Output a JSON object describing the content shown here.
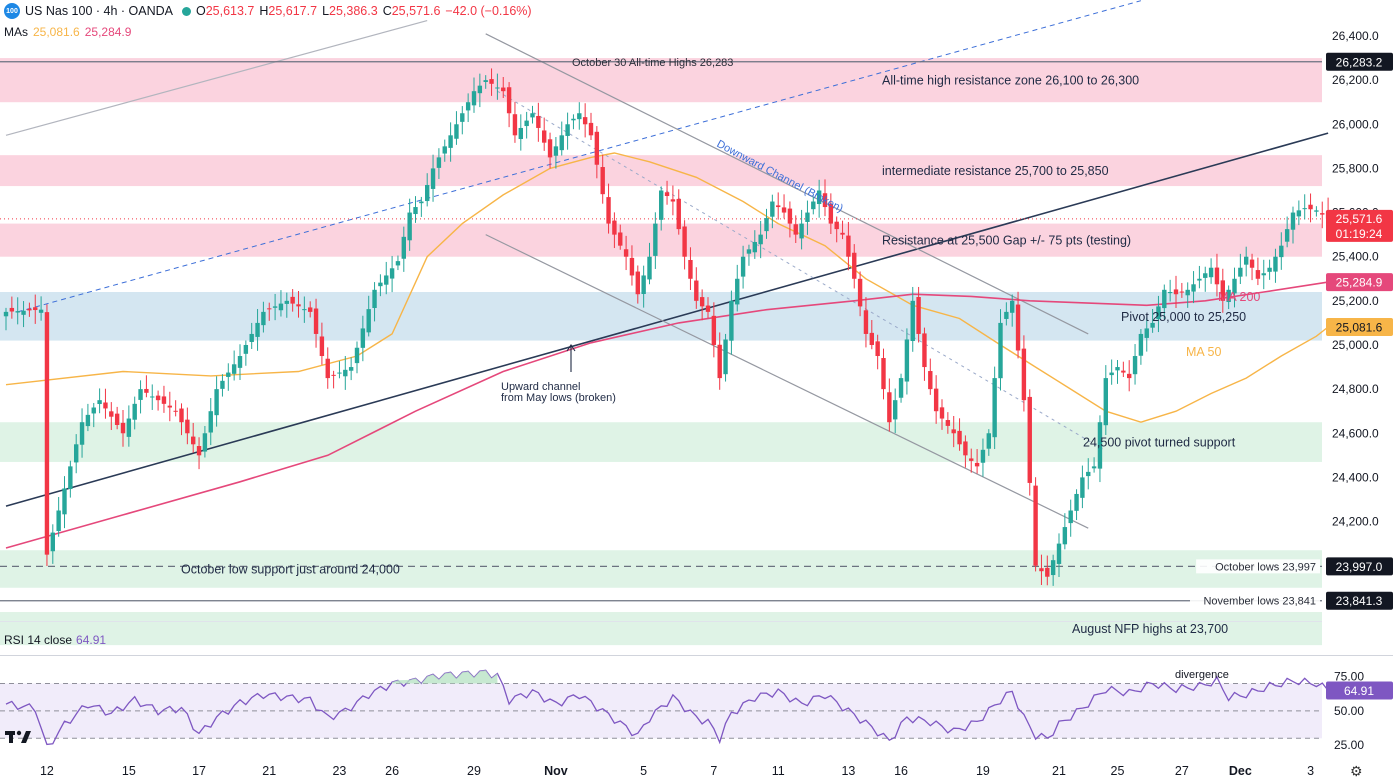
{
  "legend": {
    "badge": "100",
    "symbol": "US Nas 100 · 4h · OANDA",
    "o_label": "O",
    "o_value": "25,613.7",
    "h_label": "H",
    "h_value": "25,617.7",
    "l_label": "L",
    "l_value": "25,386.3",
    "c_label": "C",
    "c_value": "25,571.6",
    "change": "−42.0 (−0.16%)",
    "mas_label": "MAs",
    "ma50_value": "25,081.6",
    "ma200_value": "25,284.9"
  },
  "rsi_legend": {
    "label": "RSI 14 close",
    "value": "64.91"
  },
  "colors": {
    "up": "#26a69a",
    "down": "#f23645",
    "ma50": "#f7b548",
    "ma200": "#e5487b",
    "resistance_zone": "#fbd3df",
    "pivot_zone": "#d4e6f1",
    "support_zone": "#dff3e6",
    "rsi": "#7e57c2"
  },
  "chart_data": [
    {
      "type": "candlestick",
      "title": "US Nas 100 · 4h · OANDA",
      "y_range": [
        23500,
        26500
      ],
      "y_ticks": [
        {
          "value": 24000,
          "label": "24,000.0"
        },
        {
          "value": 24200,
          "label": "24,200.0"
        },
        {
          "value": 24400,
          "label": "24,400.0"
        },
        {
          "value": 24600,
          "label": "24,600.0"
        },
        {
          "value": 24800,
          "label": "24,800.0"
        },
        {
          "value": 25000,
          "label": "25,000.0"
        },
        {
          "value": 25200,
          "label": "25,200.0"
        },
        {
          "value": 25400,
          "label": "25,400.0"
        },
        {
          "value": 25600,
          "label": "25,600.0"
        },
        {
          "value": 25800,
          "label": "25,800.0"
        },
        {
          "value": 26000,
          "label": "26,000.0"
        },
        {
          "value": 26200,
          "label": "26,200.0"
        },
        {
          "value": 26400,
          "label": "26,400.0"
        }
      ],
      "x_ticks": [
        {
          "bar": 7,
          "label": "12"
        },
        {
          "bar": 21,
          "label": "15"
        },
        {
          "bar": 33,
          "label": "17"
        },
        {
          "bar": 45,
          "label": "21"
        },
        {
          "bar": 57,
          "label": "23"
        },
        {
          "bar": 66,
          "label": "26"
        },
        {
          "bar": 80,
          "label": "29"
        },
        {
          "bar": 94,
          "label": "Nov"
        },
        {
          "bar": 109,
          "label": "5"
        },
        {
          "bar": 121,
          "label": "7"
        },
        {
          "bar": 132,
          "label": "11"
        },
        {
          "bar": 144,
          "label": "13"
        },
        {
          "bar": 153,
          "label": "16"
        },
        {
          "bar": 167,
          "label": "19"
        },
        {
          "bar": 180,
          "label": "21"
        },
        {
          "bar": 190,
          "label": "25"
        },
        {
          "bar": 201,
          "label": "27"
        },
        {
          "bar": 211,
          "label": "Dec"
        },
        {
          "bar": 223,
          "label": "3"
        }
      ],
      "zones": [
        {
          "kind": "resistance",
          "from": 26100,
          "to": 26300,
          "label": "All-time high resistance zone 26,100 to 26,300"
        },
        {
          "kind": "resistance",
          "from": 25720,
          "to": 25860,
          "label": "intermediate resistance 25,700 to 25,850"
        },
        {
          "kind": "resistance",
          "from": 25400,
          "to": 25550,
          "label": "Resistance at 25,500 Gap +/- 75 pts (testing)"
        },
        {
          "kind": "pivot",
          "from": 25020,
          "to": 25240,
          "label": "Pivot 25,000 to 25,250"
        },
        {
          "kind": "support",
          "from": 24470,
          "to": 24650,
          "label": "24,500 pivot turned support"
        },
        {
          "kind": "support",
          "from": 23900,
          "to": 24070,
          "label": "October low support just around 24,000"
        },
        {
          "kind": "support",
          "from": 23640,
          "to": 23790,
          "label": "August NFP highs at 23,700"
        }
      ],
      "levels": [
        {
          "value": 26283.2,
          "label": "October 30 All-time Highs 26,283",
          "badge": "26,283.2"
        },
        {
          "value": 23997.0,
          "label": "October lows 23,997",
          "badge": "23,997.0"
        },
        {
          "value": 23841.3,
          "label": "November lows 23,841",
          "badge": "23,841.3"
        }
      ],
      "last_price": {
        "value": 25571.6,
        "badge": "25,571.6",
        "countdown": "01:19:24"
      },
      "ma_badges": [
        {
          "name": "MA 200",
          "value": 25284.9,
          "badge": "25,284.9"
        },
        {
          "name": "MA 50",
          "value": 25081.6,
          "badge": "25,081.6"
        }
      ],
      "annotations": [
        {
          "text": "Downward Channel (Broken)"
        },
        {
          "text": "Upward channel"
        },
        {
          "text": "from May lows (broken)"
        }
      ],
      "anchors": [
        [
          0,
          25150
        ],
        [
          6,
          25160
        ],
        [
          7,
          24050
        ],
        [
          13,
          24650
        ],
        [
          16,
          24750
        ],
        [
          20,
          24600
        ],
        [
          23,
          24800
        ],
        [
          26,
          24750
        ],
        [
          29,
          24700
        ],
        [
          33,
          24500
        ],
        [
          36,
          24800
        ],
        [
          40,
          24950
        ],
        [
          44,
          25150
        ],
        [
          48,
          25200
        ],
        [
          52,
          25150
        ],
        [
          55,
          24850
        ],
        [
          59,
          24900
        ],
        [
          63,
          25250
        ],
        [
          67,
          25380
        ],
        [
          69,
          25600
        ],
        [
          71,
          25650
        ],
        [
          73,
          25800
        ],
        [
          77,
          26000
        ],
        [
          80,
          26150
        ],
        [
          82,
          26200
        ],
        [
          85,
          26150
        ],
        [
          87,
          25950
        ],
        [
          90,
          26050
        ],
        [
          93,
          25850
        ],
        [
          96,
          26000
        ],
        [
          98,
          26050
        ],
        [
          100,
          25950
        ],
        [
          103,
          25550
        ],
        [
          106,
          25400
        ],
        [
          108,
          25230
        ],
        [
          110,
          25400
        ],
        [
          112,
          25700
        ],
        [
          114,
          25650
        ],
        [
          116,
          25400
        ],
        [
          118,
          25200
        ],
        [
          120,
          25150
        ],
        [
          122,
          24850
        ],
        [
          124,
          25200
        ],
        [
          126,
          25400
        ],
        [
          129,
          25500
        ],
        [
          131,
          25650
        ],
        [
          133,
          25600
        ],
        [
          135,
          25500
        ],
        [
          137,
          25600
        ],
        [
          139,
          25700
        ],
        [
          141,
          25550
        ],
        [
          143,
          25500
        ],
        [
          145,
          25300
        ],
        [
          147,
          25050
        ],
        [
          149,
          24950
        ],
        [
          151,
          24650
        ],
        [
          153,
          24850
        ],
        [
          155,
          25200
        ],
        [
          157,
          24900
        ],
        [
          159,
          24700
        ],
        [
          162,
          24600
        ],
        [
          164,
          24500
        ],
        [
          166,
          24450
        ],
        [
          168,
          24600
        ],
        [
          170,
          25100
        ],
        [
          172,
          25200
        ],
        [
          174,
          24750
        ],
        [
          176,
          24000
        ],
        [
          178,
          23950
        ],
        [
          180,
          24100
        ],
        [
          182,
          24250
        ],
        [
          184,
          24400
        ],
        [
          186,
          24450
        ],
        [
          188,
          24850
        ],
        [
          190,
          24900
        ],
        [
          192,
          24850
        ],
        [
          194,
          25050
        ],
        [
          196,
          25100
        ],
        [
          198,
          25250
        ],
        [
          200,
          25230
        ],
        [
          202,
          25250
        ],
        [
          204,
          25300
        ],
        [
          206,
          25350
        ],
        [
          208,
          25200
        ],
        [
          210,
          25300
        ],
        [
          212,
          25400
        ],
        [
          214,
          25300
        ],
        [
          216,
          25350
        ],
        [
          218,
          25450
        ],
        [
          220,
          25600
        ],
        [
          222,
          25620
        ],
        [
          224,
          25610
        ],
        [
          226,
          25571.6
        ]
      ],
      "ma50": [
        [
          0,
          24820
        ],
        [
          20,
          24880
        ],
        [
          35,
          24860
        ],
        [
          50,
          24880
        ],
        [
          60,
          24950
        ],
        [
          66,
          25050
        ],
        [
          72,
          25400
        ],
        [
          78,
          25550
        ],
        [
          85,
          25680
        ],
        [
          93,
          25800
        ],
        [
          100,
          25850
        ],
        [
          104,
          25870
        ],
        [
          110,
          25830
        ],
        [
          118,
          25760
        ],
        [
          126,
          25650
        ],
        [
          132,
          25550
        ],
        [
          140,
          25450
        ],
        [
          147,
          25300
        ],
        [
          155,
          25180
        ],
        [
          163,
          25120
        ],
        [
          170,
          25000
        ],
        [
          176,
          24900
        ],
        [
          182,
          24800
        ],
        [
          188,
          24700
        ],
        [
          194,
          24650
        ],
        [
          200,
          24700
        ],
        [
          206,
          24780
        ],
        [
          212,
          24850
        ],
        [
          218,
          24950
        ],
        [
          224,
          25040
        ],
        [
          226,
          25081.6
        ]
      ],
      "ma200": [
        [
          0,
          24080
        ],
        [
          20,
          24230
        ],
        [
          40,
          24380
        ],
        [
          55,
          24500
        ],
        [
          70,
          24700
        ],
        [
          85,
          24880
        ],
        [
          100,
          25010
        ],
        [
          115,
          25100
        ],
        [
          130,
          25160
        ],
        [
          145,
          25200
        ],
        [
          155,
          25230
        ],
        [
          165,
          25220
        ],
        [
          175,
          25200
        ],
        [
          185,
          25190
        ],
        [
          195,
          25180
        ],
        [
          205,
          25200
        ],
        [
          215,
          25240
        ],
        [
          226,
          25284.9
        ]
      ],
      "upward_channel": {
        "p1": [
          0,
          24270
        ],
        "p2": [
          226,
          25960
        ],
        "q1": [
          0,
          25950
        ],
        "q2": [
          72,
          26470
        ]
      },
      "upward_channel_dashed": {
        "p1": [
          2,
          25150
        ],
        "p2": [
          194,
          26560
        ]
      },
      "downward_channel": {
        "p1": [
          82,
          26410
        ],
        "p2": [
          185,
          25050
        ],
        "q1": [
          82,
          25500
        ],
        "q2": [
          185,
          24170
        ]
      },
      "dotted_guide": {
        "p1": [
          84,
          26150
        ],
        "p2": [
          188,
          24520
        ]
      }
    },
    {
      "type": "line",
      "title": "RSI 14 close",
      "y_range": [
        20,
        85
      ],
      "y_ticks": [
        {
          "value": 75,
          "label": "75.00"
        },
        {
          "value": 50,
          "label": "50.00"
        },
        {
          "value": 25,
          "label": "25.00"
        }
      ],
      "bands": {
        "upper": 70,
        "middle": 50,
        "lower": 30
      },
      "annotations": [
        {
          "text": "divergence"
        }
      ],
      "last": {
        "value": 64.91,
        "badge": "64.91"
      },
      "anchors": [
        [
          0,
          55
        ],
        [
          5,
          52
        ],
        [
          7,
          23
        ],
        [
          10,
          40
        ],
        [
          14,
          55
        ],
        [
          18,
          48
        ],
        [
          22,
          58
        ],
        [
          26,
          50
        ],
        [
          30,
          52
        ],
        [
          33,
          33
        ],
        [
          36,
          45
        ],
        [
          40,
          56
        ],
        [
          44,
          62
        ],
        [
          48,
          60
        ],
        [
          52,
          58
        ],
        [
          55,
          45
        ],
        [
          58,
          50
        ],
        [
          62,
          62
        ],
        [
          66,
          70
        ],
        [
          70,
          72
        ],
        [
          74,
          76
        ],
        [
          78,
          77
        ],
        [
          82,
          78
        ],
        [
          84,
          76
        ],
        [
          86,
          58
        ],
        [
          90,
          64
        ],
        [
          94,
          55
        ],
        [
          98,
          62
        ],
        [
          102,
          50
        ],
        [
          106,
          38
        ],
        [
          108,
          32
        ],
        [
          110,
          45
        ],
        [
          114,
          60
        ],
        [
          118,
          45
        ],
        [
          120,
          42
        ],
        [
          122,
          30
        ],
        [
          124,
          48
        ],
        [
          128,
          60
        ],
        [
          132,
          64
        ],
        [
          136,
          55
        ],
        [
          140,
          62
        ],
        [
          144,
          50
        ],
        [
          148,
          38
        ],
        [
          151,
          28
        ],
        [
          154,
          45
        ],
        [
          158,
          42
        ],
        [
          162,
          35
        ],
        [
          166,
          42
        ],
        [
          170,
          58
        ],
        [
          172,
          64
        ],
        [
          174,
          45
        ],
        [
          176,
          32
        ],
        [
          178,
          30
        ],
        [
          180,
          40
        ],
        [
          184,
          52
        ],
        [
          188,
          66
        ],
        [
          192,
          63
        ],
        [
          196,
          70
        ],
        [
          200,
          66
        ],
        [
          204,
          68
        ],
        [
          207,
          72
        ],
        [
          209,
          60
        ],
        [
          212,
          62
        ],
        [
          216,
          68
        ],
        [
          220,
          72
        ],
        [
          224,
          70
        ],
        [
          226,
          64.91
        ]
      ]
    }
  ]
}
